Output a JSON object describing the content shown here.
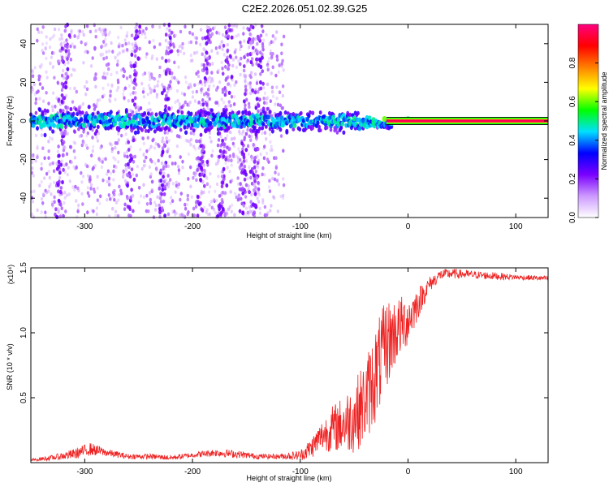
{
  "chart_data": [
    {
      "type": "heatmap",
      "title": "C2E2.2026.051.02.39.G25",
      "xlabel": "Height of straight line (km)",
      "ylabel": "Frequency (Hz)",
      "xlim": [
        -350,
        130
      ],
      "ylim": [
        -50,
        50
      ],
      "xticks": [
        -300,
        -200,
        -100,
        0,
        100
      ],
      "xtick_labels": [
        "-300",
        "-200",
        "-100",
        "0",
        "100"
      ],
      "yticks": [
        -40,
        -20,
        0,
        20,
        40
      ],
      "ytick_labels": [
        "-40",
        "-20",
        "0",
        "20",
        "40"
      ],
      "colorbar": {
        "label": "Normalized spectral amplitude",
        "range": [
          0,
          1
        ],
        "ticks": [
          0.0,
          0.2,
          0.4,
          0.6,
          0.8
        ],
        "tick_labels": [
          "0.0",
          "0.2",
          "0.4",
          "0.6",
          "0.8"
        ],
        "colors": [
          "#ffffff",
          "#cc99ff",
          "#7a00ff",
          "#0000ff",
          "#00e0ff",
          "#00ff00",
          "#ffff00",
          "#ff8000",
          "#ff0000",
          "#ff0080"
        ]
      },
      "features": {
        "noise_band_x": [
          -350,
          -115
        ],
        "vertical_streaks_x": [
          -320,
          -255,
          -225,
          -190,
          -170,
          -150,
          -140
        ],
        "central_band_halfwidth_hz": 8,
        "carrier_start_x": -20,
        "carrier_freq_hz": 0
      }
    },
    {
      "type": "line",
      "xlabel": "Height of straight line (km)",
      "ylabel": "SNR (10 * v/v)",
      "yscale_label": "(x10⁴)",
      "xlim": [
        -350,
        130
      ],
      "ylim": [
        0,
        1.5
      ],
      "xticks": [
        -300,
        -200,
        -100,
        0,
        100
      ],
      "xtick_labels": [
        "-300",
        "-200",
        "-100",
        "0",
        "100"
      ],
      "yticks": [
        0.5,
        1.0,
        1.5
      ],
      "ytick_labels": [
        "0.5",
        "1.0",
        "1.5"
      ],
      "color": "#ee2222",
      "series": [
        {
          "name": "SNR",
          "x": [
            -350,
            -330,
            -310,
            -295,
            -280,
            -260,
            -240,
            -220,
            -200,
            -180,
            -160,
            -140,
            -120,
            -100,
            -90,
            -80,
            -70,
            -60,
            -50,
            -40,
            -30,
            -20,
            -10,
            0,
            10,
            20,
            30,
            40,
            60,
            80,
            100,
            130
          ],
          "y": [
            0.02,
            0.04,
            0.07,
            0.11,
            0.08,
            0.05,
            0.05,
            0.04,
            0.06,
            0.08,
            0.07,
            0.05,
            0.05,
            0.06,
            0.12,
            0.22,
            0.28,
            0.32,
            0.38,
            0.5,
            0.72,
            0.95,
            1.05,
            1.12,
            1.25,
            1.38,
            1.45,
            1.46,
            1.45,
            1.44,
            1.43,
            1.42
          ],
          "noise_amplitude": [
            0.01,
            0.02,
            0.04,
            0.05,
            0.03,
            0.02,
            0.02,
            0.02,
            0.02,
            0.03,
            0.03,
            0.02,
            0.02,
            0.04,
            0.08,
            0.12,
            0.18,
            0.22,
            0.28,
            0.32,
            0.38,
            0.35,
            0.25,
            0.2,
            0.12,
            0.06,
            0.04,
            0.04,
            0.03,
            0.03,
            0.02,
            0.02
          ]
        }
      ]
    }
  ]
}
